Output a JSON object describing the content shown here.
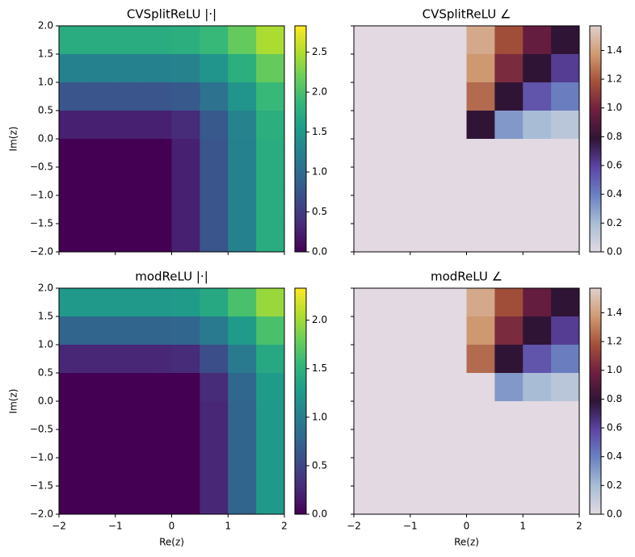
{
  "chart_data": [
    {
      "type": "heatmap",
      "title": "CVSplitReLU |·|",
      "ylabel": "Im(z)",
      "x": [
        -1.75,
        -1.25,
        -0.75,
        -0.25,
        0.25,
        0.75,
        1.25,
        1.75
      ],
      "y": [
        1.75,
        1.25,
        0.75,
        0.25,
        -0.25,
        -0.75,
        -1.25,
        -1.75
      ],
      "z": [
        [
          1.75,
          1.75,
          1.75,
          1.75,
          1.77,
          1.9,
          2.15,
          2.47
        ],
        [
          1.25,
          1.25,
          1.25,
          1.25,
          1.27,
          1.46,
          1.77,
          2.15
        ],
        [
          0.75,
          0.75,
          0.75,
          0.75,
          0.79,
          1.06,
          1.46,
          1.9
        ],
        [
          0.25,
          0.25,
          0.25,
          0.25,
          0.35,
          0.79,
          1.27,
          1.77
        ],
        [
          0,
          0,
          0,
          0,
          0.25,
          0.75,
          1.25,
          1.75
        ],
        [
          0,
          0,
          0,
          0,
          0.25,
          0.75,
          1.25,
          1.75
        ],
        [
          0,
          0,
          0,
          0,
          0.25,
          0.75,
          1.25,
          1.75
        ],
        [
          0,
          0,
          0,
          0,
          0.25,
          0.75,
          1.25,
          1.75
        ]
      ],
      "xlim": [
        -2,
        2
      ],
      "ylim": [
        -2,
        2
      ],
      "xticks": [
        -2,
        -1,
        0,
        1,
        2
      ],
      "yticks": [
        {
          "value": -2,
          "label": "−2.0"
        },
        {
          "value": -1.5,
          "label": "−1.5"
        },
        {
          "value": -1,
          "label": "−1.0"
        },
        {
          "value": -0.5,
          "label": "−0.5"
        },
        {
          "value": 0,
          "label": "0.0"
        },
        {
          "value": 0.5,
          "label": "0.5"
        },
        {
          "value": 1,
          "label": "1.0"
        },
        {
          "value": 1.5,
          "label": "1.5"
        },
        {
          "value": 2,
          "label": "2.0"
        }
      ],
      "clim": [
        0,
        2.83
      ],
      "cticks": [
        {
          "value": 0,
          "label": "0.0"
        },
        {
          "value": 0.5,
          "label": "0.5"
        },
        {
          "value": 1,
          "label": "1.0"
        },
        {
          "value": 1.5,
          "label": "1.5"
        },
        {
          "value": 2,
          "label": "2.0"
        },
        {
          "value": 2.5,
          "label": "2.5"
        }
      ],
      "colormap": [
        "#440154",
        "#482878",
        "#3e4989",
        "#31688e",
        "#26828e",
        "#1f9e89",
        "#35b779",
        "#6ece58",
        "#b5de2b",
        "#fde725"
      ]
    },
    {
      "type": "heatmap",
      "title": "CVSplitReLU ∠",
      "x": [
        -1.75,
        -1.25,
        -0.75,
        -0.25,
        0.25,
        0.75,
        1.25,
        1.75
      ],
      "y": [
        1.75,
        1.25,
        0.75,
        0.25,
        -0.25,
        -0.75,
        -1.25,
        -1.75
      ],
      "z": [
        [
          0,
          0,
          0,
          0,
          1.43,
          1.17,
          0.95,
          0.79
        ],
        [
          0,
          0,
          0,
          0,
          1.37,
          1.03,
          0.79,
          0.62
        ],
        [
          0,
          0,
          0,
          0,
          1.25,
          0.79,
          0.54,
          0.41
        ],
        [
          0,
          0,
          0,
          0,
          0.79,
          0.32,
          0.2,
          0.14
        ],
        [
          0,
          0,
          0,
          0,
          0,
          0,
          0,
          0
        ],
        [
          0,
          0,
          0,
          0,
          0,
          0,
          0,
          0
        ],
        [
          0,
          0,
          0,
          0,
          0,
          0,
          0,
          0
        ],
        [
          0,
          0,
          0,
          0,
          0,
          0,
          0,
          0
        ]
      ],
      "xlim": [
        -2,
        2
      ],
      "ylim": [
        -2,
        2
      ],
      "xticks": [
        -2,
        -1,
        0,
        1,
        2
      ],
      "yticks": [
        -2,
        -1.5,
        -1,
        -0.5,
        0,
        0.5,
        1,
        1.5,
        2
      ],
      "clim": [
        0,
        1.5708
      ],
      "cticks": [
        {
          "value": 0,
          "label": "0.0"
        },
        {
          "value": 0.2,
          "label": "0.2"
        },
        {
          "value": 0.4,
          "label": "0.4"
        },
        {
          "value": 0.6,
          "label": "0.6"
        },
        {
          "value": 0.8,
          "label": "0.8"
        },
        {
          "value": 1,
          "label": "1.0"
        },
        {
          "value": 1.2,
          "label": "1.2"
        },
        {
          "value": 1.4,
          "label": "1.4"
        }
      ],
      "colormap": [
        "#e2d9e2",
        "#a9bed5",
        "#6b82c1",
        "#5c45a4",
        "#2f1436",
        "#6e1f3f",
        "#a2503a",
        "#cf9a72",
        "#e0d0cc"
      ]
    },
    {
      "type": "heatmap",
      "title": "modReLU |·|",
      "xlabel": "Re(z)",
      "ylabel": "Im(z)",
      "x": [
        -1.75,
        -1.25,
        -0.75,
        -0.25,
        0.25,
        0.75,
        1.25,
        1.75
      ],
      "y": [
        1.75,
        1.25,
        0.75,
        0.25,
        -0.25,
        -0.75,
        -1.25,
        -1.75
      ],
      "z": [
        [
          1.25,
          1.25,
          1.25,
          1.25,
          1.27,
          1.4,
          1.65,
          1.97
        ],
        [
          0.75,
          0.75,
          0.75,
          0.75,
          0.77,
          0.96,
          1.27,
          1.65
        ],
        [
          0.25,
          0.25,
          0.25,
          0.25,
          0.29,
          0.56,
          0.96,
          1.4
        ],
        [
          0,
          0,
          0,
          0,
          0,
          0.29,
          0.77,
          1.27
        ],
        [
          0,
          0,
          0,
          0,
          0,
          0.25,
          0.75,
          1.25
        ],
        [
          0,
          0,
          0,
          0,
          0,
          0.25,
          0.75,
          1.25
        ],
        [
          0,
          0,
          0,
          0,
          0,
          0.25,
          0.75,
          1.25
        ],
        [
          0,
          0,
          0,
          0,
          0,
          0.25,
          0.75,
          1.25
        ]
      ],
      "xlim": [
        -2,
        2
      ],
      "ylim": [
        -2,
        2
      ],
      "xticks": [
        {
          "value": -2,
          "label": "−2"
        },
        {
          "value": -1,
          "label": "−1"
        },
        0,
        1,
        2
      ],
      "yticks": [
        {
          "value": -2,
          "label": "−2.0"
        },
        {
          "value": -1.5,
          "label": "−1.5"
        },
        {
          "value": -1,
          "label": "−1.0"
        },
        {
          "value": -0.5,
          "label": "−0.5"
        },
        {
          "value": 0,
          "label": "0.0"
        },
        {
          "value": 0.5,
          "label": "0.5"
        },
        {
          "value": 1,
          "label": "1.0"
        },
        {
          "value": 1.5,
          "label": "1.5"
        },
        {
          "value": 2,
          "label": "2.0"
        }
      ],
      "clim": [
        0,
        2.33
      ],
      "cticks": [
        {
          "value": 0,
          "label": "0.0"
        },
        {
          "value": 0.5,
          "label": "0.5"
        },
        {
          "value": 1,
          "label": "1.0"
        },
        {
          "value": 1.5,
          "label": "1.5"
        },
        {
          "value": 2,
          "label": "2.0"
        }
      ],
      "colormap": [
        "#440154",
        "#482878",
        "#3e4989",
        "#31688e",
        "#26828e",
        "#1f9e89",
        "#35b779",
        "#6ece58",
        "#b5de2b",
        "#fde725"
      ]
    },
    {
      "type": "heatmap",
      "title": "modReLU ∠",
      "xlabel": "Re(z)",
      "x": [
        -1.75,
        -1.25,
        -0.75,
        -0.25,
        0.25,
        0.75,
        1.25,
        1.75
      ],
      "y": [
        1.75,
        1.25,
        0.75,
        0.25,
        -0.25,
        -0.75,
        -1.25,
        -1.75
      ],
      "z": [
        [
          0,
          0,
          0,
          0,
          1.43,
          1.17,
          0.95,
          0.79
        ],
        [
          0,
          0,
          0,
          0,
          1.37,
          1.03,
          0.79,
          0.62
        ],
        [
          0,
          0,
          0,
          0,
          1.25,
          0.79,
          0.54,
          0.41
        ],
        [
          0,
          0,
          0,
          0,
          0,
          0.32,
          0.2,
          0.14
        ],
        [
          0,
          0,
          0,
          0,
          0,
          0,
          0,
          0
        ],
        [
          0,
          0,
          0,
          0,
          0,
          0,
          0,
          0
        ],
        [
          0,
          0,
          0,
          0,
          0,
          0,
          0,
          0
        ],
        [
          0,
          0,
          0,
          0,
          0,
          0,
          0,
          0
        ]
      ],
      "xlim": [
        -2,
        2
      ],
      "ylim": [
        -2,
        2
      ],
      "xticks": [
        {
          "value": -2,
          "label": "−2"
        },
        {
          "value": -1,
          "label": "−1"
        },
        0,
        1,
        2
      ],
      "yticks": [
        -2,
        -1.5,
        -1,
        -0.5,
        0,
        0.5,
        1,
        1.5,
        2
      ],
      "clim": [
        0,
        1.5708
      ],
      "cticks": [
        {
          "value": 0,
          "label": "0.0"
        },
        {
          "value": 0.2,
          "label": "0.2"
        },
        {
          "value": 0.4,
          "label": "0.4"
        },
        {
          "value": 0.6,
          "label": "0.6"
        },
        {
          "value": 0.8,
          "label": "0.8"
        },
        {
          "value": 1,
          "label": "1.0"
        },
        {
          "value": 1.2,
          "label": "1.2"
        },
        {
          "value": 1.4,
          "label": "1.4"
        }
      ],
      "colormap": [
        "#e2d9e2",
        "#a9bed5",
        "#6b82c1",
        "#5c45a4",
        "#2f1436",
        "#6e1f3f",
        "#a2503a",
        "#cf9a72",
        "#e0d0cc"
      ]
    }
  ]
}
